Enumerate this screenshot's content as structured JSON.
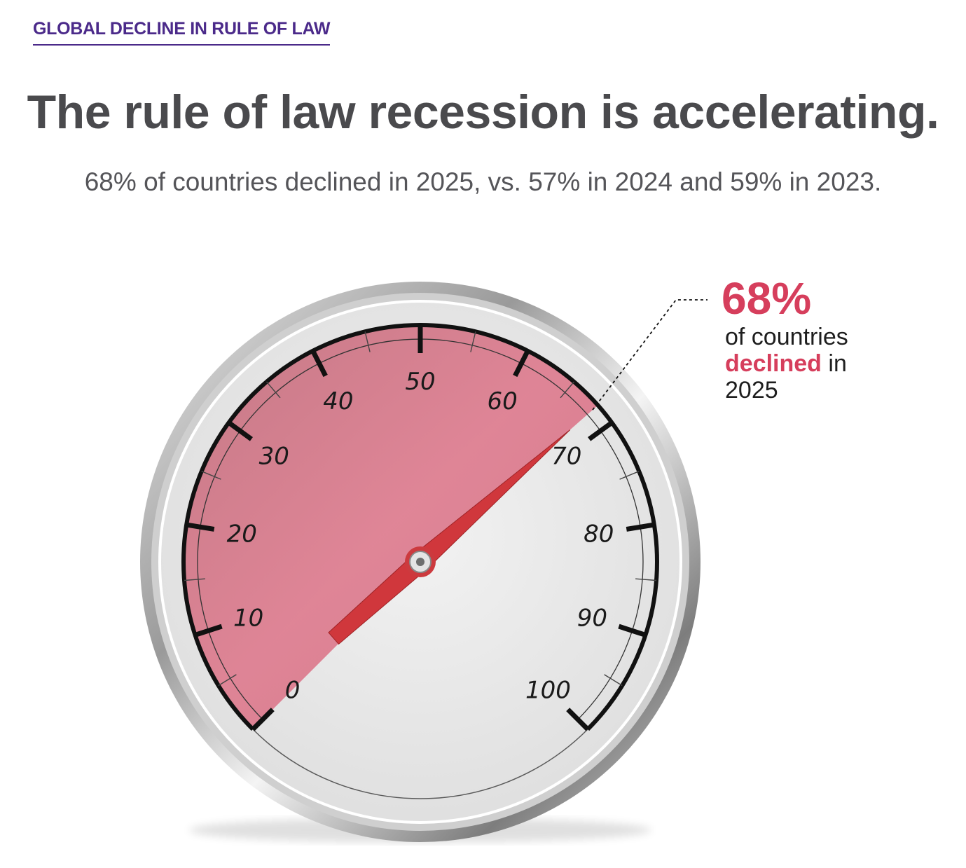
{
  "header": {
    "eyebrow": "GLOBAL DECLINE IN RULE OF LAW",
    "title": "The rule of law recession is accelerating.",
    "subtitle": "68% of countries declined in 2025, vs. 57% in 2024 and 59% in 2023."
  },
  "callout": {
    "value": "68%",
    "line1": "of countries",
    "highlight": "declined",
    "line2_rest": " in",
    "line3": "2025"
  },
  "colors": {
    "accent": "#d63e5c",
    "fill": "#d96f86",
    "needle": "#d0373c",
    "eyebrow": "#4b2a8a"
  },
  "chart_data": {
    "type": "gauge",
    "value": 68,
    "min": 0,
    "max": 100,
    "major_ticks": [
      0,
      10,
      20,
      30,
      40,
      50,
      60,
      70,
      80,
      90,
      100
    ],
    "tick_labels": [
      "0",
      "10",
      "20",
      "30",
      "40",
      "50",
      "60",
      "70",
      "80",
      "90",
      "100"
    ],
    "comparison": [
      {
        "year": "2023",
        "value": 59
      },
      {
        "year": "2024",
        "value": 57
      },
      {
        "year": "2025",
        "value": 68
      }
    ]
  }
}
